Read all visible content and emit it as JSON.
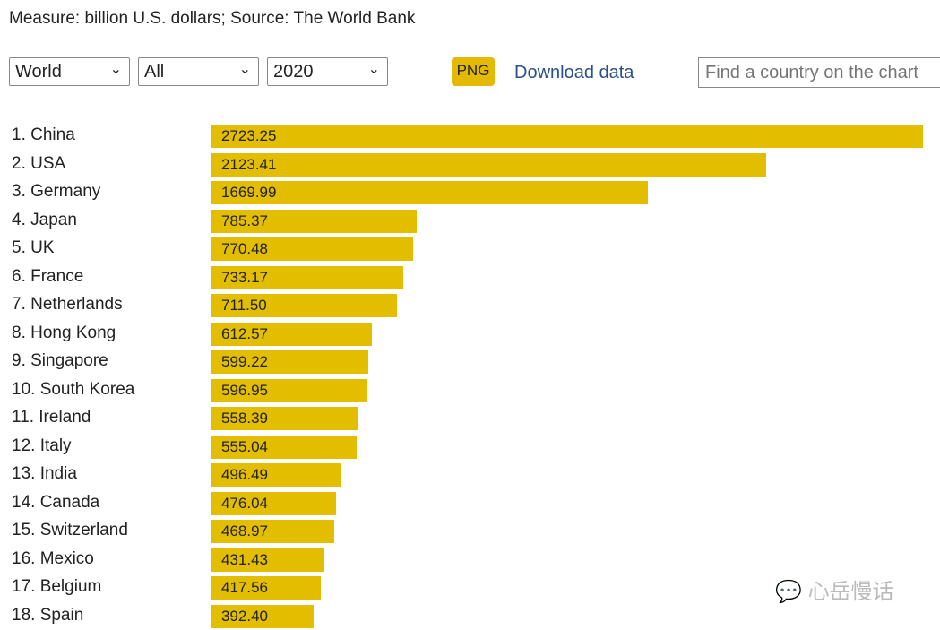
{
  "header": {
    "measure": "Measure: billion U.S. dollars; Source: The World Bank"
  },
  "controls": {
    "region": "World",
    "category": "All",
    "year": "2020",
    "png_label": "PNG",
    "download_label": "Download data",
    "find_placeholder": "Find a country on the chart"
  },
  "watermark": "心岳慢话",
  "chart_data": {
    "type": "bar",
    "orientation": "horizontal",
    "title": "",
    "xlabel": "billion U.S. dollars",
    "ylabel": "",
    "categories": [
      "1. China",
      "2. USA",
      "3. Germany",
      "4. Japan",
      "5. UK",
      "6. France",
      "7. Netherlands",
      "8. Hong Kong",
      "9. Singapore",
      "10. South Korea",
      "11. Ireland",
      "12. Italy",
      "13. India",
      "14. Canada",
      "15. Switzerland",
      "16. Mexico",
      "17. Belgium",
      "18. Spain"
    ],
    "values": [
      2723.25,
      2123.41,
      1669.99,
      785.37,
      770.48,
      733.17,
      711.5,
      612.57,
      599.22,
      596.95,
      558.39,
      555.04,
      496.49,
      476.04,
      468.97,
      431.43,
      417.56,
      392.4
    ],
    "labels": [
      "2723.25",
      "2123.41",
      "1669.99",
      "785.37",
      "770.48",
      "733.17",
      "711.50",
      "612.57",
      "599.22",
      "596.95",
      "558.39",
      "555.04",
      "496.49",
      "476.04",
      "468.97",
      "431.43",
      "417.56",
      "392.40"
    ],
    "xlim": [
      0,
      2723.25
    ],
    "color": "#e3bd00"
  }
}
